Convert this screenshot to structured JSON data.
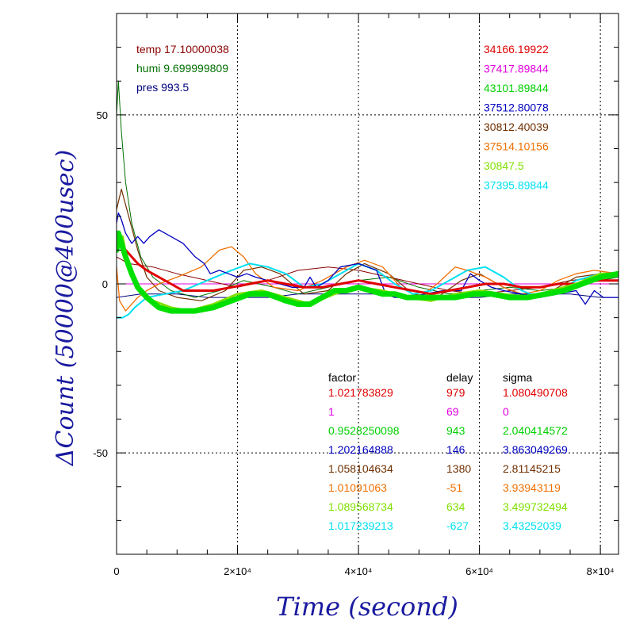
{
  "chart_data": {
    "type": "line",
    "xlabel": "Time (second)",
    "ylabel": "ΔCount (50000@400usec)",
    "xlim": [
      0,
      83000
    ],
    "ylim": [
      -80,
      80
    ],
    "x_ticks": [
      0,
      20000,
      40000,
      60000,
      80000
    ],
    "x_tick_labels": [
      "0",
      "2×10⁴",
      "4×10⁴",
      "6×10⁴",
      "8×10⁴"
    ],
    "y_ticks": [
      -50,
      0,
      50
    ],
    "y_tick_labels": [
      "-50",
      "0",
      "50"
    ],
    "grid": "dotted at major ticks",
    "env": [
      {
        "label": "temp 17.10000038",
        "color": "#8b0000"
      },
      {
        "label": "humi 9.699999809",
        "color": "#007000"
      },
      {
        "label": "pres 993.5",
        "color": "#000080"
      }
    ],
    "series_values": [
      {
        "value": "34166.19922",
        "color": "#e00000"
      },
      {
        "value": "37417.89844",
        "color": "#e000e0"
      },
      {
        "value": "43101.89844",
        "color": "#00d000"
      },
      {
        "value": "37512.80078",
        "color": "#0000c0"
      },
      {
        "value": "30812.40039",
        "color": "#703000"
      },
      {
        "value": "37514.10156",
        "color": "#f07000"
      },
      {
        "value": "30847.5",
        "color": "#80e000"
      },
      {
        "value": "37395.89844",
        "color": "#00e0f0"
      }
    ],
    "table": {
      "headers": [
        "factor",
        "delay",
        "sigma"
      ],
      "rows": [
        {
          "factor": "1.021783829",
          "delay": "979",
          "sigma": "1.080490708",
          "color": "#e00000"
        },
        {
          "factor": "1",
          "delay": "69",
          "sigma": "0",
          "color": "#e000e0"
        },
        {
          "factor": "0.9528250098",
          "delay": "943",
          "sigma": "2.040414572",
          "color": "#00d000"
        },
        {
          "factor": "1.202164888",
          "delay": "146",
          "sigma": "3.863049269",
          "color": "#0000c0"
        },
        {
          "factor": "1.058104634",
          "delay": "1380",
          "sigma": "2.81145215",
          "color": "#703000"
        },
        {
          "factor": "1.01091063",
          "delay": "-51",
          "sigma": "3.93943119",
          "color": "#f07000"
        },
        {
          "factor": "1.089568734",
          "delay": "634",
          "sigma": "3.499732494",
          "color": "#80e000"
        },
        {
          "factor": "1.017239213",
          "delay": "-627",
          "sigma": "3.43252039",
          "color": "#00e0f0"
        }
      ]
    },
    "series": [
      {
        "color": "#e000e0",
        "width": 1,
        "x": [
          0,
          83000
        ],
        "y": [
          0,
          0
        ]
      },
      {
        "color": "#8b0000",
        "width": 1,
        "x": [
          0,
          2000,
          6000,
          10000,
          15000,
          20000,
          25000,
          30000,
          35000,
          40000,
          45000,
          50000,
          55000,
          60000,
          65000,
          70000,
          75000,
          80000,
          83000
        ],
        "y": [
          8,
          6,
          5,
          3,
          1,
          -1,
          1,
          4,
          5,
          4,
          2,
          0,
          -2,
          -3,
          -2,
          -1,
          1,
          2,
          3
        ]
      },
      {
        "color": "#000080",
        "width": 1,
        "x": [
          0,
          4000,
          10000,
          15000,
          20000,
          25000,
          30000,
          35000,
          40000,
          45000,
          50000,
          55000,
          60000,
          65000,
          70000,
          75000,
          80000,
          83000
        ],
        "y": [
          -4,
          -3,
          -3,
          -4,
          -4,
          -4,
          -3,
          -3,
          -3,
          -3,
          -4,
          -4,
          -4,
          -3,
          -3,
          -3,
          -4,
          -4
        ]
      },
      {
        "color": "#007000",
        "width": 1,
        "x": [
          0,
          300,
          800,
          1500,
          2500,
          4000,
          6000,
          9000,
          13000,
          17000,
          21000,
          26000,
          30000,
          35000,
          40000,
          45000,
          50000,
          55000,
          60000,
          65000,
          70000,
          75000,
          80000,
          83000
        ],
        "y": [
          50,
          60,
          45,
          30,
          18,
          8,
          2,
          -2,
          -4,
          -2,
          1,
          -1,
          -3,
          -1,
          1,
          2,
          -1,
          -3,
          -2,
          -1,
          -2,
          -1,
          1,
          2
        ]
      },
      {
        "color": "#703000",
        "width": 1.2,
        "x": [
          0,
          800,
          2000,
          3500,
          5000,
          7000,
          10000,
          14000,
          18000,
          21000,
          24000,
          27000,
          31000,
          35000,
          38000,
          41000,
          45000,
          49000,
          53000,
          57000,
          60000,
          64000,
          68000,
          72000,
          76000,
          80000,
          83000
        ],
        "y": [
          22,
          28,
          20,
          10,
          2,
          -2,
          -4,
          -5,
          -2,
          4,
          5,
          3,
          -3,
          -2,
          3,
          6,
          3,
          -3,
          -4,
          1,
          3,
          -1,
          -4,
          -2,
          2,
          3,
          3
        ]
      },
      {
        "color": "#f07000",
        "width": 1.3,
        "x": [
          0,
          500,
          1500,
          2500,
          3500,
          5000,
          7000,
          10000,
          14000,
          17000,
          19000,
          21000,
          23000,
          26000,
          30000,
          34000,
          38000,
          41000,
          44000,
          47000,
          50000,
          53000,
          56000,
          58000,
          61000,
          64000,
          67000,
          70000,
          73000,
          76000,
          79000,
          83000
        ],
        "y": [
          5,
          -5,
          -8,
          -6,
          -4,
          -2,
          0,
          2,
          5,
          10,
          11,
          8,
          3,
          -1,
          -2,
          1,
          5,
          7,
          5,
          -1,
          -4,
          0,
          5,
          4,
          2,
          -1,
          -3,
          -2,
          1,
          3,
          4,
          3
        ]
      },
      {
        "color": "#00e0f0",
        "width": 2,
        "x": [
          0,
          1000,
          2000,
          3000,
          5000,
          8000,
          11000,
          15000,
          19000,
          22000,
          25000,
          28000,
          31000,
          34000,
          37000,
          40000,
          43000,
          46000,
          49000,
          52000,
          55000,
          58000,
          61000,
          64000,
          67000,
          70000,
          73000,
          76000,
          80000,
          83000
        ],
        "y": [
          -10,
          -10,
          -9,
          -7,
          -4,
          -3,
          -2,
          1,
          4,
          6,
          5,
          3,
          -1,
          0,
          3,
          6,
          4,
          0,
          -3,
          -2,
          1,
          4,
          5,
          2,
          -2,
          -4,
          -2,
          1,
          3,
          3
        ]
      },
      {
        "color": "#0000c0",
        "width": 1.3,
        "x": [
          0,
          300,
          800,
          1500,
          2500,
          3500,
          4500,
          5500,
          7000,
          9000,
          11000,
          13000,
          14500,
          15500,
          17000,
          18500,
          20000,
          21500,
          23000,
          25000,
          27000,
          29000,
          31000,
          32000,
          33000,
          35000,
          37000,
          40000,
          43000,
          44500,
          46000,
          48000,
          51000,
          54000,
          57000,
          58500,
          60000,
          62000,
          64000,
          67000,
          70000,
          73000,
          76000,
          77500,
          79000,
          80500,
          82000,
          83000
        ],
        "y": [
          18,
          21,
          19,
          15,
          12,
          14,
          12,
          14,
          16,
          14,
          12,
          8,
          6,
          3,
          4,
          3,
          2,
          3,
          2,
          1,
          0,
          -1,
          -1,
          2,
          -1,
          1,
          5,
          6,
          4,
          -3,
          -4,
          -4,
          -3,
          -2,
          -2,
          3,
          1,
          -1,
          -2,
          -3,
          -4,
          -3,
          -2,
          -6,
          -2,
          -4,
          -4,
          -4
        ]
      },
      {
        "color": "#e00000",
        "width": 3,
        "x": [
          0,
          500,
          1000,
          2000,
          3500,
          5000,
          7000,
          9000,
          11000,
          13000,
          16000,
          19000,
          22000,
          25000,
          28000,
          31000,
          34000,
          37000,
          40000,
          43000,
          46000,
          49000,
          52000,
          55000,
          58000,
          61000,
          64000,
          67000,
          70000,
          73000,
          76000,
          79000,
          81000,
          83000
        ],
        "y": [
          10,
          13,
          11,
          9,
          6,
          4,
          2,
          0,
          -2,
          -2,
          -2,
          -1,
          0,
          1,
          0,
          -1,
          -1,
          0,
          1,
          0,
          -1,
          -2,
          -3,
          -2,
          -1,
          0,
          0,
          -1,
          -1,
          0,
          0,
          1,
          1,
          1
        ]
      },
      {
        "color": "#80e000",
        "width": 3,
        "x": [
          0,
          1000,
          2000,
          4000,
          6000,
          9000,
          12000,
          16000,
          20000,
          24000,
          28000,
          32000,
          36000,
          40000,
          44000,
          48000,
          52000,
          56000,
          60000,
          64000,
          68000,
          72000,
          76000,
          80000,
          83000
        ],
        "y": [
          10,
          14,
          4,
          -2,
          -5,
          -7,
          -8,
          -6,
          -3,
          -2,
          -4,
          -6,
          -3,
          -1,
          -2,
          -4,
          -5,
          -3,
          -2,
          -3,
          -4,
          -2,
          0,
          3,
          3
        ]
      },
      {
        "color": "#00e000",
        "width": 7,
        "x": [
          0,
          300,
          800,
          1500,
          2500,
          3500,
          5000,
          7000,
          9000,
          11000,
          13000,
          16000,
          19000,
          22000,
          25000,
          28000,
          30000,
          32000,
          34000,
          36000,
          38000,
          40000,
          42000,
          44000,
          46000,
          48000,
          50000,
          53000,
          56000,
          59000,
          62000,
          65000,
          68000,
          71000,
          74000,
          77000,
          80000,
          83000
        ],
        "y": [
          10,
          15,
          12,
          8,
          3,
          -1,
          -4,
          -7,
          -8,
          -8,
          -8,
          -7,
          -5,
          -3,
          -3,
          -5,
          -6,
          -6,
          -4,
          -2,
          -2,
          -1,
          -2,
          -3,
          -3,
          -4,
          -4,
          -4,
          -4,
          -3,
          -3,
          -4,
          -4,
          -3,
          -2,
          0,
          2,
          3
        ]
      }
    ]
  }
}
